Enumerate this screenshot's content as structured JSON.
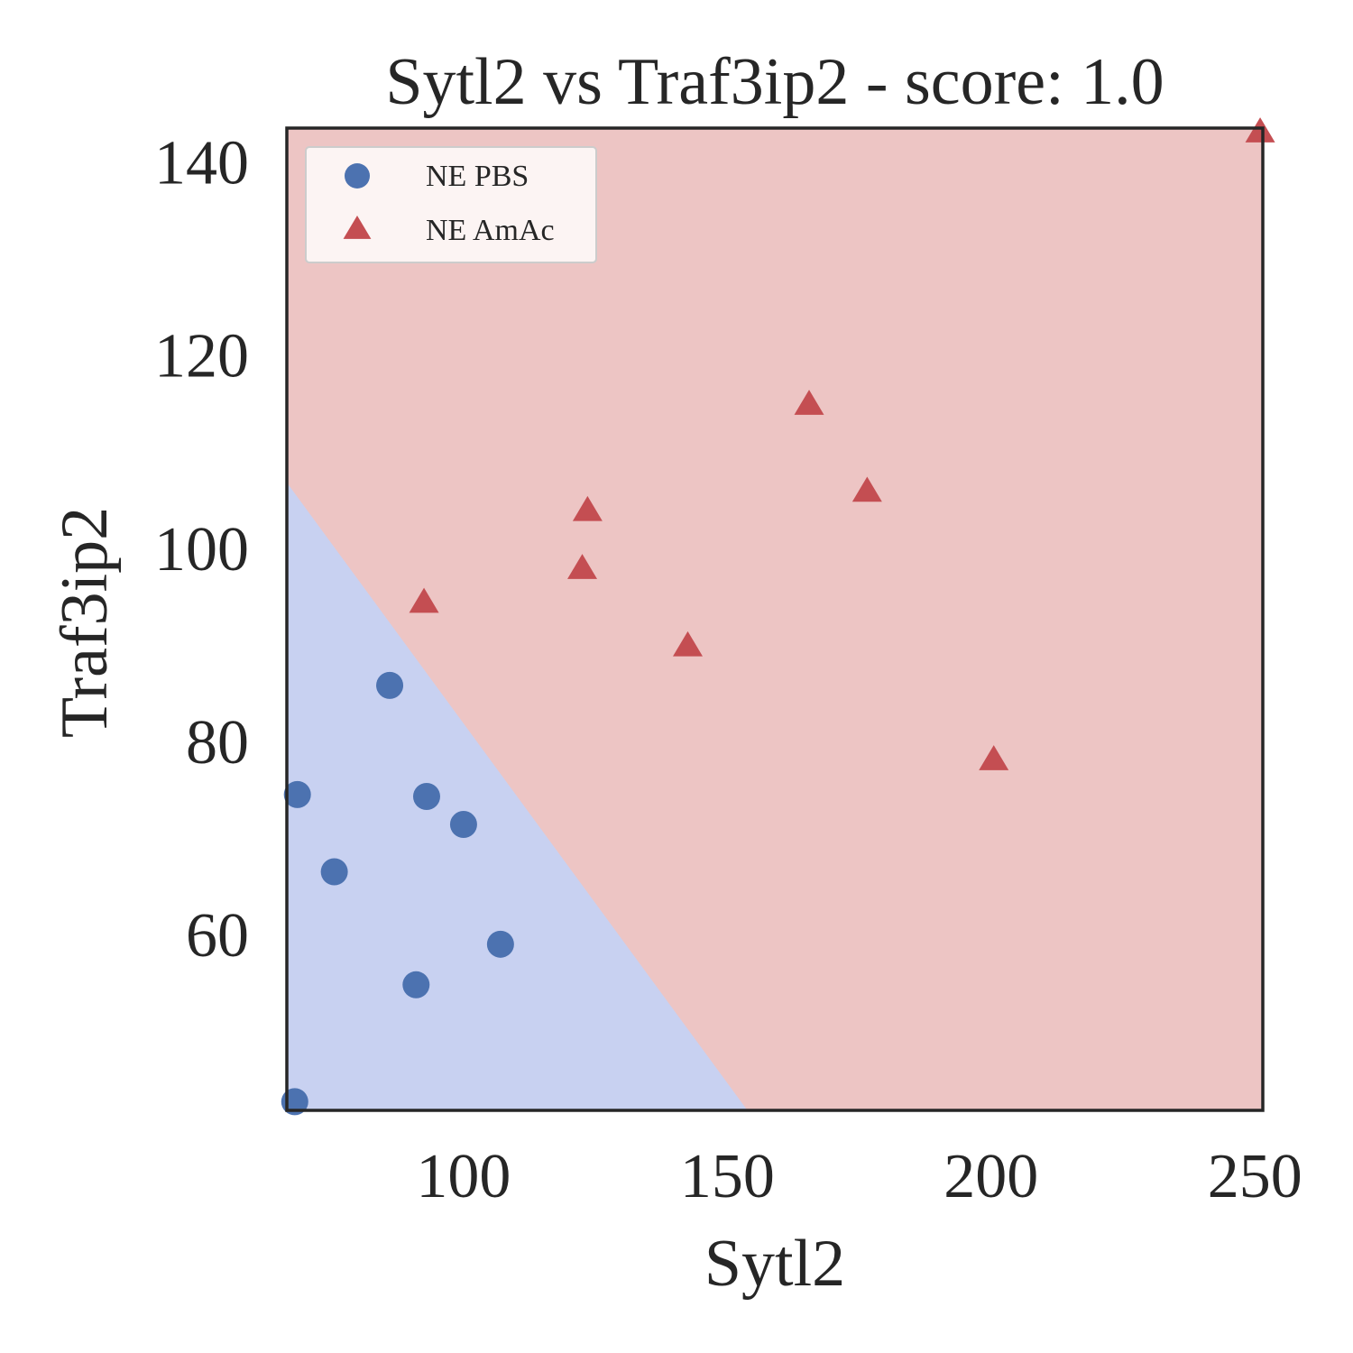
{
  "chart_data": {
    "type": "scatter",
    "title": "Sytl2 vs Traf3ip2 - score: 1.0",
    "xlabel": "Sytl2",
    "ylabel": "Traf3ip2",
    "xlim": [
      66.5,
      251.5
    ],
    "ylim": [
      41.8,
      143.5
    ],
    "xticks": [
      100,
      150,
      200,
      250
    ],
    "yticks": [
      60,
      80,
      100,
      120,
      140
    ],
    "grid": false,
    "legend_position": "top-left",
    "decision_boundary": {
      "points": [
        [
          66.5,
          106.8
        ],
        [
          153.8,
          41.8
        ]
      ],
      "colors": {
        "below": "#c8d1f1",
        "above": "#edc5c4"
      }
    },
    "series": [
      {
        "name": "NE PBS",
        "marker": "circle",
        "color": "#4c72b0",
        "points": [
          [
            68.5,
            74.5
          ],
          [
            75.5,
            66.5
          ],
          [
            86.0,
            85.8
          ],
          [
            91.0,
            54.8
          ],
          [
            93.0,
            74.3
          ],
          [
            100.0,
            71.4
          ],
          [
            107.0,
            59.0
          ],
          [
            68.0,
            42.7
          ]
        ]
      },
      {
        "name": "NE AmAc",
        "marker": "triangle",
        "color": "#c44e52",
        "points": [
          [
            92.5,
            94.3
          ],
          [
            122.5,
            97.8
          ],
          [
            123.5,
            103.8
          ],
          [
            142.5,
            89.8
          ],
          [
            165.5,
            114.8
          ],
          [
            176.5,
            105.8
          ],
          [
            200.5,
            78.0
          ],
          [
            251.0,
            143.0
          ]
        ]
      }
    ]
  }
}
